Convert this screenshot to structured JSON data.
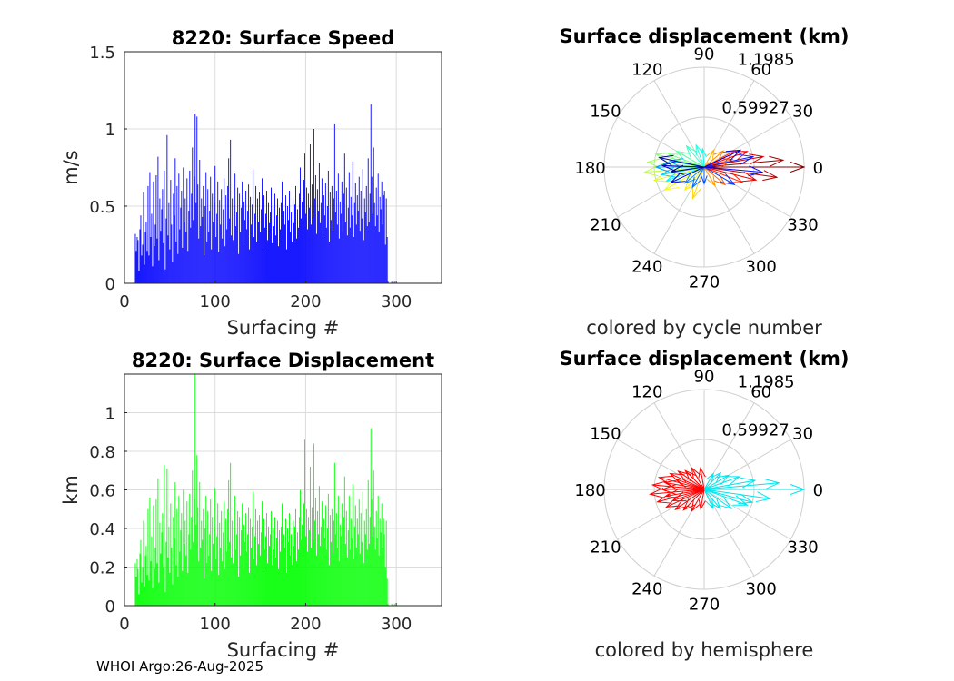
{
  "figure": {
    "footer": "WHOI Argo:26-Aug-2025"
  },
  "chart_data": [
    {
      "id": "speed",
      "type": "bar",
      "title": "8220: Surface Speed",
      "xlabel": "Surfacing #",
      "ylabel": "m/s",
      "xlim": [
        0,
        350
      ],
      "ylim": [
        0,
        1.5
      ],
      "xticks": [
        0,
        100,
        200,
        300
      ],
      "yticks": [
        0,
        0.5,
        1,
        1.5
      ],
      "ytick_labels": [
        "0",
        "0.5",
        "1",
        "1.5"
      ],
      "grid": true,
      "color": "#0000ff",
      "x_start": 12,
      "values": [
        0.32,
        0.21,
        0.3,
        0.28,
        0.08,
        0.35,
        0.44,
        0.18,
        0.25,
        0.59,
        0.12,
        0.33,
        0.4,
        0.21,
        0.63,
        0.18,
        0.72,
        0.3,
        0.45,
        0.11,
        0.66,
        0.24,
        0.38,
        0.7,
        0.29,
        0.82,
        0.15,
        0.55,
        0.34,
        0.48,
        0.61,
        0.26,
        0.73,
        0.09,
        0.42,
        0.96,
        0.31,
        0.52,
        0.22,
        0.67,
        0.38,
        0.14,
        0.58,
        0.44,
        0.81,
        0.27,
        0.63,
        0.19,
        0.71,
        0.35,
        0.49,
        0.6,
        0.23,
        0.75,
        0.4,
        0.55,
        0.33,
        0.68,
        0.21,
        0.47,
        0.73,
        0.36,
        0.58,
        0.88,
        0.41,
        0.69,
        1.1,
        0.52,
        1.08,
        0.64,
        0.29,
        0.8,
        0.37,
        0.55,
        0.43,
        0.63,
        0.18,
        0.5,
        0.72,
        0.27,
        0.61,
        0.33,
        0.47,
        0.69,
        0.22,
        0.58,
        0.4,
        0.52,
        0.76,
        0.3,
        0.45,
        0.66,
        0.2,
        0.54,
        0.38,
        0.61,
        0.29,
        0.48,
        0.68,
        0.24,
        0.57,
        0.35,
        0.63,
        0.81,
        0.42,
        0.93,
        0.31,
        0.55,
        0.28,
        0.5,
        0.71,
        0.37,
        0.46,
        0.62,
        0.19,
        0.58,
        0.33,
        0.49,
        0.66,
        0.25,
        0.53,
        0.41,
        0.6,
        0.35,
        0.47,
        0.64,
        0.22,
        0.56,
        0.38,
        0.51,
        0.74,
        0.3,
        0.45,
        0.63,
        0.27,
        0.55,
        0.4,
        0.59,
        0.33,
        0.48,
        0.68,
        0.21,
        0.57,
        0.36,
        0.45,
        0.6,
        0.28,
        0.52,
        0.39,
        0.46,
        0.62,
        0.26,
        0.5,
        0.37,
        0.58,
        0.31,
        0.44,
        0.55,
        0.24,
        0.49,
        0.35,
        0.52,
        0.66,
        0.3,
        0.47,
        0.38,
        0.57,
        0.22,
        0.5,
        0.41,
        0.6,
        0.33,
        0.46,
        0.27,
        0.55,
        0.39,
        0.51,
        0.63,
        0.29,
        0.48,
        0.36,
        0.58,
        0.75,
        0.42,
        0.53,
        0.31,
        0.67,
        0.84,
        0.45,
        0.62,
        0.35,
        0.58,
        0.49,
        0.9,
        0.38,
        0.64,
        0.43,
        1.0,
        0.55,
        0.7,
        0.32,
        0.61,
        0.47,
        0.78,
        0.39,
        0.52,
        0.68,
        0.3,
        0.57,
        0.44,
        0.65,
        0.36,
        0.5,
        0.73,
        0.27,
        0.59,
        0.41,
        0.63,
        0.34,
        0.55,
        1.03,
        0.46,
        0.6,
        0.38,
        0.71,
        0.29,
        0.53,
        0.45,
        0.66,
        0.33,
        0.58,
        0.84,
        0.4,
        0.62,
        0.31,
        0.49,
        0.72,
        0.36,
        0.56,
        0.44,
        0.79,
        0.3,
        0.52,
        0.65,
        0.38,
        0.57,
        0.47,
        0.69,
        0.34,
        0.6,
        0.42,
        0.74,
        0.28,
        0.55,
        0.46,
        0.63,
        0.37,
        0.81,
        0.4,
        0.58,
        1.16,
        0.69,
        0.45,
        0.88,
        0.52,
        0.37,
        0.62,
        0.44,
        0.71,
        0.33,
        0.56,
        0.48,
        0.66,
        0.38,
        0.57,
        0.6,
        0.25,
        0.55,
        0.3,
        0.01,
        0.0,
        0.0,
        0.0,
        0.01,
        0.0,
        0.0,
        0.01,
        0.0,
        0.0
      ],
      "trailing_zeros_from": 295
    },
    {
      "id": "displacement",
      "type": "bar",
      "title": "8220: Surface Displacement",
      "xlabel": "Surfacing #",
      "ylabel": "km",
      "xlim": [
        0,
        350
      ],
      "ylim": [
        0,
        1.2
      ],
      "xticks": [
        0,
        100,
        200,
        300
      ],
      "yticks": [
        0,
        0.2,
        0.4,
        0.6,
        0.8,
        1
      ],
      "ytick_labels": [
        "0",
        "0.2",
        "0.4",
        "0.6",
        "0.8",
        "1"
      ],
      "grid": true,
      "color": "#00ff00",
      "x_start": 12,
      "values": [
        0.22,
        0.15,
        0.24,
        0.19,
        0.06,
        0.27,
        0.34,
        0.12,
        0.2,
        0.44,
        0.1,
        0.26,
        0.31,
        0.16,
        0.5,
        0.13,
        0.56,
        0.23,
        0.36,
        0.09,
        0.52,
        0.19,
        0.3,
        0.55,
        0.22,
        0.66,
        0.12,
        0.43,
        0.27,
        0.38,
        0.48,
        0.2,
        0.73,
        0.07,
        0.33,
        0.71,
        0.25,
        0.41,
        0.17,
        0.53,
        0.3,
        0.11,
        0.46,
        0.35,
        0.64,
        0.21,
        0.5,
        0.15,
        0.57,
        0.28,
        0.39,
        0.48,
        0.18,
        0.6,
        0.32,
        0.44,
        0.26,
        0.54,
        0.17,
        0.37,
        0.58,
        0.29,
        0.46,
        0.7,
        0.33,
        0.55,
        1.2,
        0.42,
        0.78,
        0.51,
        0.23,
        0.64,
        0.3,
        0.44,
        0.34,
        0.5,
        0.14,
        0.4,
        0.57,
        0.22,
        0.49,
        0.26,
        0.37,
        0.55,
        0.18,
        0.46,
        0.32,
        0.41,
        0.61,
        0.24,
        0.36,
        0.53,
        0.16,
        0.43,
        0.3,
        0.49,
        0.23,
        0.38,
        0.54,
        0.19,
        0.45,
        0.28,
        0.5,
        0.65,
        0.33,
        0.74,
        0.25,
        0.44,
        0.22,
        0.4,
        0.57,
        0.29,
        0.37,
        0.49,
        0.15,
        0.46,
        0.26,
        0.39,
        0.53,
        0.2,
        0.42,
        0.33,
        0.48,
        0.28,
        0.37,
        0.51,
        0.17,
        0.45,
        0.3,
        0.41,
        0.59,
        0.24,
        0.36,
        0.5,
        0.21,
        0.44,
        0.32,
        0.47,
        0.26,
        0.38,
        0.54,
        0.17,
        0.45,
        0.29,
        0.36,
        0.48,
        0.22,
        0.41,
        0.31,
        0.37,
        0.49,
        0.21,
        0.4,
        0.29,
        0.46,
        0.25,
        0.35,
        0.44,
        0.19,
        0.39,
        0.28,
        0.41,
        0.53,
        0.24,
        0.37,
        0.3,
        0.45,
        0.17,
        0.4,
        0.33,
        0.48,
        0.26,
        0.37,
        0.21,
        0.44,
        0.31,
        0.41,
        0.5,
        0.23,
        0.38,
        0.29,
        0.46,
        0.6,
        0.34,
        0.42,
        0.25,
        0.53,
        0.86,
        0.36,
        0.5,
        0.28,
        0.46,
        0.39,
        0.72,
        0.3,
        0.51,
        0.34,
        0.84,
        0.44,
        0.56,
        0.26,
        0.49,
        0.37,
        0.62,
        0.31,
        0.41,
        0.54,
        0.24,
        0.45,
        0.35,
        0.52,
        0.29,
        0.4,
        0.58,
        0.21,
        0.47,
        0.33,
        0.5,
        0.27,
        0.44,
        0.74,
        0.37,
        0.48,
        0.3,
        0.57,
        0.23,
        0.42,
        0.36,
        0.53,
        0.26,
        0.46,
        0.67,
        0.32,
        0.49,
        0.25,
        0.39,
        0.57,
        0.29,
        0.45,
        0.35,
        0.63,
        0.24,
        0.41,
        0.52,
        0.3,
        0.45,
        0.37,
        0.55,
        0.27,
        0.48,
        0.33,
        0.59,
        0.22,
        0.44,
        0.37,
        0.5,
        0.29,
        0.65,
        0.32,
        0.46,
        0.92,
        0.55,
        0.36,
        0.7,
        0.41,
        0.29,
        0.49,
        0.35,
        0.57,
        0.26,
        0.45,
        0.38,
        0.53,
        0.3,
        0.45,
        0.37,
        0.2,
        0.44,
        0.14,
        0.01,
        0.0,
        0.0,
        0.0,
        0.01,
        0.0,
        0.0,
        0.01,
        0.0,
        0.0
      ]
    },
    {
      "id": "polar_cycle",
      "type": "polar-compass",
      "title": "Surface displacement (km)",
      "caption": "colored by cycle number",
      "rlim": [
        0,
        1.1985
      ],
      "rtick_labels": [
        "0.59927",
        "1.1985"
      ],
      "rtick_values": [
        0.59927,
        1.1985
      ],
      "angle_labels": [
        "0",
        "30",
        "60",
        "90",
        "120",
        "150",
        "180",
        "210",
        "240",
        "270",
        "300",
        "330"
      ],
      "angle_values": [
        0,
        30,
        60,
        90,
        120,
        150,
        180,
        210,
        240,
        270,
        300,
        330
      ],
      "colormap": "jet",
      "arrows": [
        {
          "theta": 0,
          "r": 1.2
        },
        {
          "theta": 5,
          "r": 0.95
        },
        {
          "theta": 352,
          "r": 0.88
        },
        {
          "theta": 10,
          "r": 0.72
        },
        {
          "theta": 346,
          "r": 0.64
        },
        {
          "theta": 20,
          "r": 0.55
        },
        {
          "theta": 338,
          "r": 0.5
        },
        {
          "theta": 28,
          "r": 0.42
        },
        {
          "theta": 15,
          "r": 0.35
        },
        {
          "theta": 320,
          "r": 0.33
        },
        {
          "theta": 40,
          "r": 0.3
        },
        {
          "theta": 300,
          "r": 0.26
        },
        {
          "theta": 60,
          "r": 0.24
        },
        {
          "theta": 250,
          "r": 0.4
        },
        {
          "theta": 230,
          "r": 0.36
        },
        {
          "theta": 210,
          "r": 0.55
        },
        {
          "theta": 195,
          "r": 0.62
        },
        {
          "theta": 185,
          "r": 0.72
        },
        {
          "theta": 175,
          "r": 0.68
        },
        {
          "theta": 165,
          "r": 0.6
        },
        {
          "theta": 160,
          "r": 0.45
        },
        {
          "theta": 150,
          "r": 0.38
        },
        {
          "theta": 130,
          "r": 0.33
        },
        {
          "theta": 110,
          "r": 0.28
        },
        {
          "theta": 95,
          "r": 0.22
        },
        {
          "theta": 200,
          "r": 0.48
        },
        {
          "theta": 190,
          "r": 0.52
        },
        {
          "theta": 170,
          "r": 0.42
        },
        {
          "theta": 180,
          "r": 0.58
        },
        {
          "theta": 220,
          "r": 0.3
        },
        {
          "theta": 240,
          "r": 0.28
        },
        {
          "theta": 270,
          "r": 0.2
        },
        {
          "theta": 330,
          "r": 0.42
        },
        {
          "theta": 12,
          "r": 0.6
        },
        {
          "theta": 355,
          "r": 0.7
        },
        {
          "theta": 25,
          "r": 0.48
        },
        {
          "theta": 205,
          "r": 0.44
        },
        {
          "theta": 178,
          "r": 0.5
        },
        {
          "theta": 168,
          "r": 0.55
        },
        {
          "theta": 188,
          "r": 0.4
        }
      ]
    },
    {
      "id": "polar_hemisphere",
      "type": "polar-compass",
      "title": "Surface displacement (km)",
      "caption": "colored by hemisphere",
      "rlim": [
        0,
        1.1985
      ],
      "rtick_labels": [
        "0.59927",
        "1.1985"
      ],
      "rtick_values": [
        0.59927,
        1.1985
      ],
      "angle_labels": [
        "0",
        "30",
        "60",
        "90",
        "120",
        "150",
        "180",
        "210",
        "240",
        "270",
        "300",
        "330"
      ],
      "angle_values": [
        0,
        30,
        60,
        90,
        120,
        150,
        180,
        210,
        240,
        270,
        300,
        330
      ],
      "colors": {
        "east": "#00e5ee",
        "west": "#ff0000"
      },
      "arrows": [
        {
          "theta": 0,
          "r": 1.2,
          "hemi": "east"
        },
        {
          "theta": 5,
          "r": 0.9,
          "hemi": "east"
        },
        {
          "theta": 352,
          "r": 0.8,
          "hemi": "east"
        },
        {
          "theta": 10,
          "r": 0.62,
          "hemi": "east"
        },
        {
          "theta": 340,
          "r": 0.55,
          "hemi": "east"
        },
        {
          "theta": 20,
          "r": 0.45,
          "hemi": "east"
        },
        {
          "theta": 325,
          "r": 0.4,
          "hemi": "east"
        },
        {
          "theta": 30,
          "r": 0.34,
          "hemi": "east"
        },
        {
          "theta": 310,
          "r": 0.3,
          "hemi": "east"
        },
        {
          "theta": 45,
          "r": 0.28,
          "hemi": "east"
        },
        {
          "theta": 295,
          "r": 0.25,
          "hemi": "east"
        },
        {
          "theta": 185,
          "r": 0.65,
          "hemi": "west"
        },
        {
          "theta": 175,
          "r": 0.62,
          "hemi": "west"
        },
        {
          "theta": 195,
          "r": 0.58,
          "hemi": "west"
        },
        {
          "theta": 165,
          "r": 0.56,
          "hemi": "west"
        },
        {
          "theta": 205,
          "r": 0.5,
          "hemi": "west"
        },
        {
          "theta": 155,
          "r": 0.45,
          "hemi": "west"
        },
        {
          "theta": 215,
          "r": 0.42,
          "hemi": "west"
        },
        {
          "theta": 145,
          "r": 0.38,
          "hemi": "west"
        },
        {
          "theta": 225,
          "r": 0.35,
          "hemi": "west"
        },
        {
          "theta": 120,
          "r": 0.3,
          "hemi": "west"
        },
        {
          "theta": 100,
          "r": 0.26,
          "hemi": "west"
        },
        {
          "theta": 240,
          "r": 0.3,
          "hemi": "west"
        },
        {
          "theta": 260,
          "r": 0.24,
          "hemi": "west"
        },
        {
          "theta": 180,
          "r": 0.5,
          "hemi": "west"
        },
        {
          "theta": 190,
          "r": 0.46,
          "hemi": "west"
        },
        {
          "theta": 170,
          "r": 0.48,
          "hemi": "west"
        },
        {
          "theta": 200,
          "r": 0.4,
          "hemi": "west"
        },
        {
          "theta": 160,
          "r": 0.36,
          "hemi": "west"
        },
        {
          "theta": 135,
          "r": 0.32,
          "hemi": "west"
        },
        {
          "theta": 60,
          "r": 0.22,
          "hemi": "east"
        },
        {
          "theta": 345,
          "r": 0.6,
          "hemi": "east"
        }
      ]
    }
  ]
}
